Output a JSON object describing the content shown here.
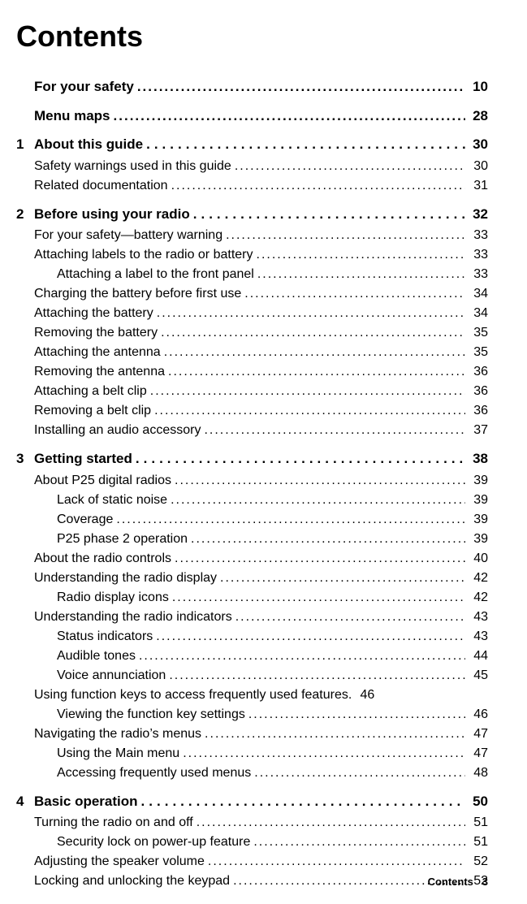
{
  "title": "Contents",
  "footer": {
    "label": "Contents",
    "page": "3"
  },
  "entries": [
    {
      "type": "bold",
      "first": true,
      "indent": 0,
      "label": "For your safety",
      "page": "10"
    },
    {
      "type": "bold",
      "indent": 0,
      "label": "Menu maps",
      "page": "28"
    },
    {
      "type": "chapter",
      "num": "1",
      "label": "About this guide",
      "page": "30",
      "sparse": true
    },
    {
      "type": "normal",
      "indent": 1,
      "label": "Safety warnings used in this guide",
      "page": "30"
    },
    {
      "type": "normal",
      "indent": 1,
      "label": "Related documentation",
      "page": "31"
    },
    {
      "type": "chapter",
      "num": "2",
      "label": "Before using your radio",
      "page": "32",
      "sparse": true
    },
    {
      "type": "normal",
      "indent": 1,
      "label": "For your safety—battery warning",
      "page": "33"
    },
    {
      "type": "normal",
      "indent": 1,
      "label": "Attaching labels to the radio or battery",
      "page": "33"
    },
    {
      "type": "normal",
      "indent": 2,
      "label": "Attaching a label to the front panel",
      "page": "33"
    },
    {
      "type": "normal",
      "indent": 1,
      "label": "Charging the battery before first use",
      "page": "34"
    },
    {
      "type": "normal",
      "indent": 1,
      "label": "Attaching the battery",
      "page": "34"
    },
    {
      "type": "normal",
      "indent": 1,
      "label": "Removing the battery",
      "page": "35"
    },
    {
      "type": "normal",
      "indent": 1,
      "label": "Attaching the antenna",
      "page": "35"
    },
    {
      "type": "normal",
      "indent": 1,
      "label": "Removing the antenna",
      "page": "36"
    },
    {
      "type": "normal",
      "indent": 1,
      "label": "Attaching a belt clip",
      "page": "36"
    },
    {
      "type": "normal",
      "indent": 1,
      "label": "Removing a belt clip",
      "page": "36"
    },
    {
      "type": "normal",
      "indent": 1,
      "label": "Installing an audio accessory",
      "page": "37"
    },
    {
      "type": "chapter",
      "num": "3",
      "label": "Getting started",
      "page": "38",
      "sparse": true
    },
    {
      "type": "normal",
      "indent": 1,
      "label": "About P25 digital radios",
      "page": "39"
    },
    {
      "type": "normal",
      "indent": 2,
      "label": "Lack of static noise",
      "page": "39"
    },
    {
      "type": "normal",
      "indent": 2,
      "label": "Coverage",
      "page": "39"
    },
    {
      "type": "normal",
      "indent": 2,
      "label": "P25 phase 2 operation",
      "page": "39"
    },
    {
      "type": "normal",
      "indent": 1,
      "label": "About the radio controls",
      "page": "40"
    },
    {
      "type": "normal",
      "indent": 1,
      "label": "Understanding the radio display",
      "page": "42"
    },
    {
      "type": "normal",
      "indent": 2,
      "label": "Radio display icons",
      "page": "42"
    },
    {
      "type": "normal",
      "indent": 1,
      "label": "Understanding the radio indicators",
      "page": "43"
    },
    {
      "type": "normal",
      "indent": 2,
      "label": "Status indicators",
      "page": "43"
    },
    {
      "type": "normal",
      "indent": 2,
      "label": "Audible tones",
      "page": "44"
    },
    {
      "type": "normal",
      "indent": 2,
      "label": "Voice annunciation",
      "page": "45"
    },
    {
      "type": "normal",
      "indent": 1,
      "label": "Using function keys to access frequently used features",
      "page": "46",
      "noleader": true
    },
    {
      "type": "normal",
      "indent": 2,
      "label": "Viewing the function key settings",
      "page": "46"
    },
    {
      "type": "normal",
      "indent": 1,
      "label": "Navigating the radio’s menus",
      "page": "47"
    },
    {
      "type": "normal",
      "indent": 2,
      "label": "Using the Main menu",
      "page": "47"
    },
    {
      "type": "normal",
      "indent": 2,
      "label": "Accessing frequently used menus",
      "page": "48"
    },
    {
      "type": "chapter",
      "num": "4",
      "label": "Basic operation",
      "page": "50",
      "sparse": true
    },
    {
      "type": "normal",
      "indent": 1,
      "label": "Turning the radio on and off",
      "page": "51"
    },
    {
      "type": "normal",
      "indent": 2,
      "label": "Security lock on power-up feature",
      "page": "51"
    },
    {
      "type": "normal",
      "indent": 1,
      "label": "Adjusting the speaker volume",
      "page": "52"
    },
    {
      "type": "normal",
      "indent": 1,
      "label": "Locking and unlocking the keypad",
      "page": "52"
    }
  ]
}
